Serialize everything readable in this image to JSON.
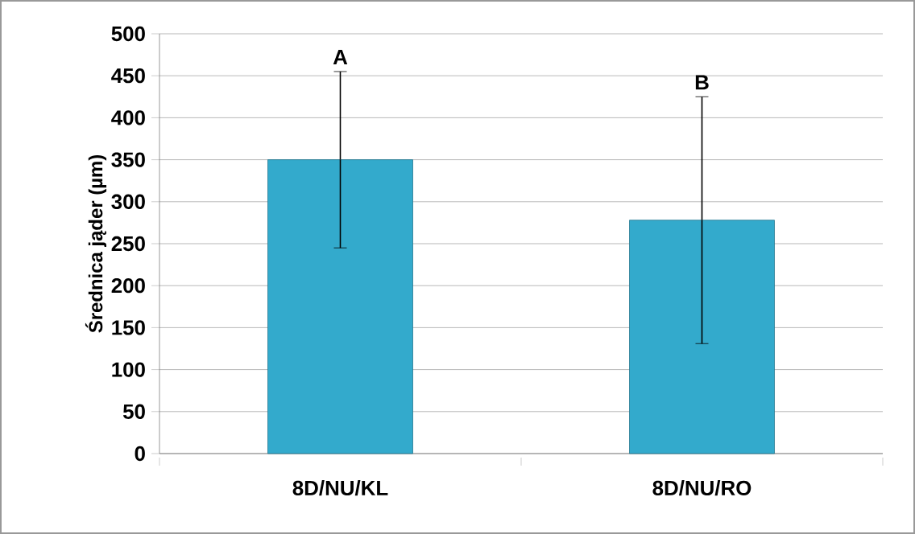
{
  "chart_data": {
    "type": "bar",
    "ylabel": "Średnica jąder (µm)",
    "categories": [
      "8D/NU/KL",
      "8D/NU/RO"
    ],
    "values": [
      350,
      278
    ],
    "errors": [
      105,
      147
    ],
    "color": "#33aacc",
    "ylim": [
      0,
      500
    ],
    "yticks": [
      0,
      50,
      100,
      150,
      200,
      250,
      300,
      350,
      400,
      450,
      500
    ],
    "grid": "y",
    "annotations": [
      "A",
      "B"
    ]
  }
}
